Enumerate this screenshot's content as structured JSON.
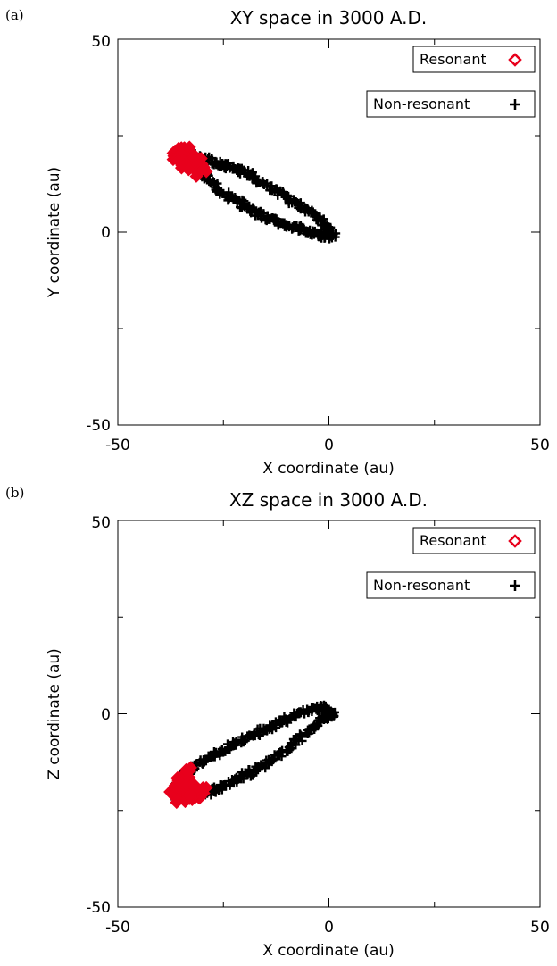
{
  "chart_data": [
    {
      "type": "scatter",
      "panel_label": "(a)",
      "title": "XY space in 3000 A.D.",
      "xlabel": "X coordinate (au)",
      "ylabel": "Y coordinate (au)",
      "xlim": [
        -50,
        50
      ],
      "ylim": [
        -50,
        50
      ],
      "x_ticks": [
        -50,
        0,
        50
      ],
      "y_ticks": [
        -50,
        0,
        50
      ],
      "grid": false,
      "legend_placement": "top-right",
      "legend": [
        {
          "label": "Resonant",
          "marker": "diamond",
          "color": "#e8001c"
        },
        {
          "label": "Non-resonant",
          "marker": "plus",
          "color": "#000000"
        }
      ],
      "orbit": {
        "x_range": [
          -38,
          1
        ],
        "trend": "ellipse from (1, -1) to (-36, 21)"
      },
      "series": [
        {
          "name": "Non-resonant",
          "color": "#000000",
          "marker": "plus",
          "x": [
            1,
            0,
            -2,
            -4,
            -7,
            -10,
            -13,
            -16,
            -19,
            -22,
            -25,
            -28,
            -31,
            -34,
            -36,
            -35,
            -33,
            -30,
            -27,
            -24,
            -21,
            -18,
            -15,
            -12,
            -9,
            -6,
            -3,
            -1
          ],
          "y": [
            -1,
            1,
            3,
            5,
            7,
            9,
            11,
            13,
            15,
            16.5,
            17.5,
            18.5,
            19.5,
            20.5,
            21,
            20,
            18,
            15,
            12,
            9.5,
            7.5,
            5.5,
            4,
            2.5,
            1.5,
            0.5,
            -0.5,
            -1
          ]
        },
        {
          "name": "Resonant",
          "color": "#e8001c",
          "marker": "diamond",
          "x": [
            -36,
            -35,
            -34,
            -33,
            -32,
            -31,
            -30,
            -35,
            -34,
            -33,
            -32,
            -31,
            -34.5,
            -33.5,
            -32.5,
            -36,
            -35,
            -34
          ],
          "y": [
            20,
            21,
            21,
            20,
            19,
            18,
            16,
            19,
            18.5,
            17.5,
            16.5,
            15.5,
            20,
            19,
            18,
            19.5,
            18,
            17
          ]
        }
      ]
    },
    {
      "type": "scatter",
      "panel_label": "(b)",
      "title": "XZ space in 3000 A.D.",
      "xlabel": "X coordinate (au)",
      "ylabel": "Z coordinate (au)",
      "xlim": [
        -50,
        50
      ],
      "ylim": [
        -50,
        50
      ],
      "x_ticks": [
        -50,
        0,
        50
      ],
      "y_ticks": [
        -50,
        0,
        50
      ],
      "grid": false,
      "legend_placement": "top-right",
      "legend": [
        {
          "label": "Resonant",
          "marker": "diamond",
          "color": "#e8001c"
        },
        {
          "label": "Non-resonant",
          "marker": "plus",
          "color": "#000000"
        }
      ],
      "orbit": {
        "x_range": [
          -38,
          1
        ],
        "trend": "ellipse from (1, 0) to (-36, -21)"
      },
      "series": [
        {
          "name": "Non-resonant",
          "color": "#000000",
          "marker": "plus",
          "x": [
            1,
            -1,
            -3,
            -6,
            -9,
            -12,
            -15,
            -18,
            -21,
            -24,
            -27,
            -30,
            -33,
            -35,
            -37,
            -36,
            -34,
            -31,
            -28,
            -25,
            -22,
            -19,
            -16,
            -13,
            -10,
            -7,
            -4,
            -2,
            0
          ],
          "y": [
            0,
            1.5,
            1.5,
            0.5,
            -1,
            -2.5,
            -4,
            -5.5,
            -7,
            -8.5,
            -10.5,
            -12.5,
            -15,
            -17,
            -19.5,
            -21.5,
            -21.5,
            -21,
            -20,
            -18.5,
            -17,
            -15.5,
            -13.5,
            -11.5,
            -9,
            -6.5,
            -4,
            -2,
            -0.5
          ]
        },
        {
          "name": "Resonant",
          "color": "#e8001c",
          "marker": "diamond",
          "x": [
            -37,
            -36,
            -35,
            -34,
            -33,
            -32,
            -31,
            -30,
            -36,
            -35,
            -34,
            -33,
            -32,
            -35,
            -34,
            -33,
            -34,
            -33
          ],
          "y": [
            -20,
            -21,
            -22,
            -22,
            -22,
            -21.5,
            -21,
            -20,
            -19,
            -19,
            -20,
            -21,
            -20.5,
            -17,
            -16,
            -15,
            -18,
            -19
          ]
        }
      ]
    }
  ]
}
